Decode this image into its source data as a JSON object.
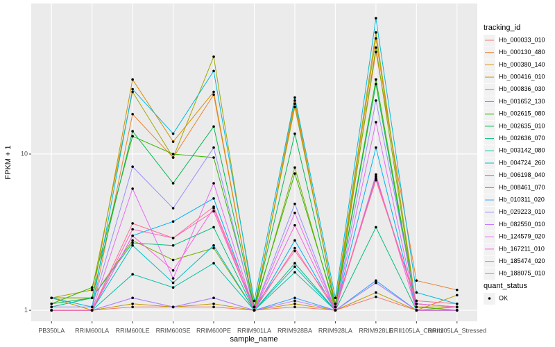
{
  "chart_data": {
    "type": "line",
    "x_label": "sample_name",
    "y_label": "FPKM + 1",
    "categories": [
      "PB350LA",
      "RRIM600LA",
      "RRIM600LE",
      "RRIM600SE",
      "RRIM600PE",
      "RRIM901LA",
      "RRIM928BA",
      "RRIM928LA",
      "RRIM928LE",
      "RRII105LA_Control",
      "RRII105LA_Stressed"
    ],
    "ylim": [
      0.85,
      92
    ],
    "yticks": [
      1,
      10
    ],
    "log_y": true,
    "grid": true,
    "legend_position": "right",
    "legend_title": "tracking_id",
    "point_legend": {
      "title": "quant_status",
      "labels": [
        "OK"
      ],
      "color": "#000000"
    },
    "series": [
      {
        "name": "Hb_000033_010",
        "color": "#F8766D",
        "values": [
          1.0,
          1.0,
          1.05,
          1.05,
          1.05,
          1.0,
          1.05,
          1.0,
          1.22,
          1.0,
          1.0
        ]
      },
      {
        "name": "Hb_000130_480",
        "color": "#EA8331",
        "values": [
          1.0,
          1.0,
          18,
          9.5,
          24,
          1.0,
          21,
          1.1,
          45,
          1.55,
          1.35
        ]
      },
      {
        "name": "Hb_000380_140",
        "color": "#D89000",
        "values": [
          1.2,
          1.2,
          30,
          12,
          25,
          1.0,
          22,
          1.05,
          55,
          1.05,
          1.05
        ]
      },
      {
        "name": "Hb_000416_010",
        "color": "#C09B00",
        "values": [
          1.2,
          1.0,
          1.1,
          1.05,
          1.1,
          1.0,
          1.1,
          1.0,
          1.3,
          1.0,
          1.25
        ]
      },
      {
        "name": "Hb_000836_030",
        "color": "#A3A500",
        "values": [
          1.2,
          1.35,
          25,
          9.5,
          42,
          1.05,
          20,
          1.1,
          60,
          1.0,
          1.05
        ]
      },
      {
        "name": "Hb_001652_130",
        "color": "#7CAE00",
        "values": [
          1.2,
          1.2,
          2.8,
          2.1,
          2.5,
          1.0,
          8.2,
          1.0,
          48,
          1.0,
          1.0
        ]
      },
      {
        "name": "Hb_002615_080",
        "color": "#39B600",
        "values": [
          1.1,
          1.4,
          13,
          10,
          9.5,
          1.05,
          7.5,
          1.05,
          30,
          1.05,
          1.0
        ]
      },
      {
        "name": "Hb_002635_010",
        "color": "#00BB4E",
        "values": [
          1.1,
          1.2,
          14,
          6.5,
          15,
          1.05,
          13.5,
          1.05,
          28,
          1.0,
          1.0
        ]
      },
      {
        "name": "Hb_002636_070",
        "color": "#00BF7D",
        "values": [
          1.05,
          1.2,
          2.7,
          2.6,
          3.4,
          1.0,
          2.0,
          1.0,
          3.4,
          1.0,
          1.0
        ]
      },
      {
        "name": "Hb_003142_080",
        "color": "#00C1A3",
        "values": [
          1.0,
          1.0,
          1.7,
          1.4,
          2.0,
          1.0,
          1.75,
          1.0,
          1.5,
          1.0,
          1.0
        ]
      },
      {
        "name": "Hb_004724_260",
        "color": "#00BFC4",
        "values": [
          1.0,
          1.0,
          2.6,
          1.5,
          2.6,
          1.0,
          1.9,
          1.0,
          7.2,
          1.1,
          1.05
        ]
      },
      {
        "name": "Hb_006198_040",
        "color": "#00BAE0",
        "values": [
          1.2,
          1.05,
          26,
          13.5,
          34,
          1.15,
          23,
          1.2,
          74,
          1.3,
          1.1
        ]
      },
      {
        "name": "Hb_008461_070",
        "color": "#00B0F6",
        "values": [
          1.0,
          1.0,
          3.0,
          3.7,
          5.2,
          1.0,
          2.8,
          1.0,
          11,
          1.0,
          1.0
        ]
      },
      {
        "name": "Hb_010311_020",
        "color": "#35A2FF",
        "values": [
          1.0,
          1.0,
          1.2,
          1.05,
          1.2,
          1.0,
          1.2,
          1.0,
          1.55,
          1.0,
          1.0
        ]
      },
      {
        "name": "Hb_029223_010",
        "color": "#9590FF",
        "values": [
          1.05,
          1.05,
          8.3,
          4.5,
          11,
          1.0,
          4.8,
          1.0,
          22,
          1.1,
          1.05
        ]
      },
      {
        "name": "Hb_082550_010",
        "color": "#C77CFF",
        "values": [
          1.0,
          1.0,
          1.2,
          1.05,
          1.2,
          1.0,
          1.15,
          1.0,
          1.5,
          1.0,
          1.0
        ]
      },
      {
        "name": "Hb_124579_020",
        "color": "#E76BF3",
        "values": [
          1.0,
          1.0,
          6,
          1.6,
          6.5,
          1.0,
          4.2,
          1.0,
          16,
          1.0,
          1.0
        ]
      },
      {
        "name": "Hb_167211_010",
        "color": "#FA62DB",
        "values": [
          1.0,
          1.0,
          3.0,
          1.8,
          4.5,
          1.0,
          3.5,
          1.0,
          7.4,
          1.0,
          1.0
        ]
      },
      {
        "name": "Hb_185474_020",
        "color": "#FF62BC",
        "values": [
          1.0,
          1.0,
          3.3,
          2.9,
          4.3,
          1.0,
          2.5,
          1.0,
          7.0,
          1.1,
          1.05
        ]
      },
      {
        "name": "Hb_188075_010",
        "color": "#FF6C91",
        "values": [
          1.0,
          1.0,
          3.6,
          2.9,
          4.6,
          1.05,
          2.4,
          1.05,
          6.8,
          1.15,
          1.1
        ]
      }
    ]
  }
}
